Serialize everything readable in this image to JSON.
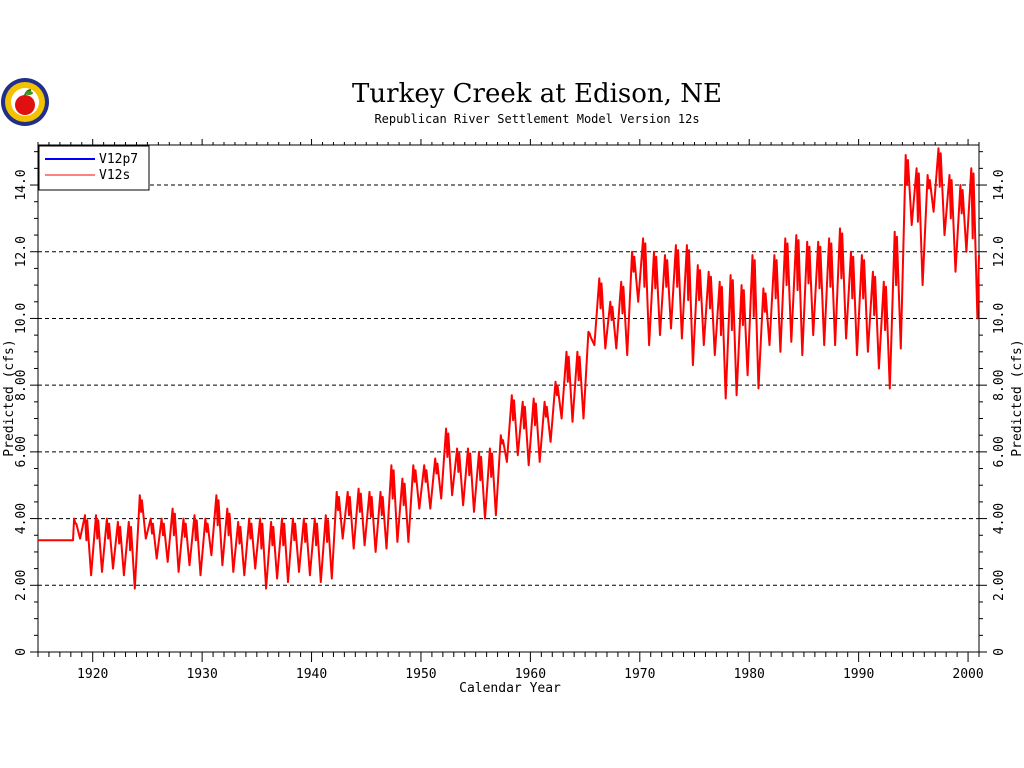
{
  "logo": {
    "icon": "apple-seal-logo"
  },
  "chart_data": {
    "type": "line",
    "title": "Turkey Creek at Edison, NE",
    "subtitle": "Republican River Settlement Model Version 12s",
    "xlabel": "Calendar Year",
    "ylabel": "Predicted (cfs)",
    "ylabel_right": "Predicted (cfs)",
    "xlim": [
      1915,
      2001
    ],
    "ylim": [
      0,
      15.2
    ],
    "x_ticks": [
      1920,
      1930,
      1940,
      1950,
      1960,
      1970,
      1980,
      1990,
      2000
    ],
    "x_tick_labels": [
      "1920",
      "1930",
      "1940",
      "1950",
      "1960",
      "1970",
      "1980",
      "1990",
      "2000"
    ],
    "y_ticks": [
      0,
      2,
      4,
      6,
      8,
      10,
      12,
      14
    ],
    "y_tick_labels": [
      "0",
      "2.00",
      "4.00",
      "6.00",
      "8.00",
      "10.0",
      "12.0",
      "14.0"
    ],
    "grid": "horizontal dashed",
    "legend_position": "top-left",
    "series": [
      {
        "name": "V12p7",
        "color": "#0000ff",
        "values": []
      },
      {
        "name": "V12s",
        "color": "#ff0000",
        "initial_value": 3.35,
        "initial_span": [
          1915,
          1918.2
        ],
        "annual_peak_trough": [
          [
            1918,
            4.0,
            3.4
          ],
          [
            1919,
            4.1,
            2.3
          ],
          [
            1920,
            4.1,
            2.4
          ],
          [
            1921,
            4.0,
            2.5
          ],
          [
            1922,
            3.9,
            2.3
          ],
          [
            1923,
            3.9,
            1.9
          ],
          [
            1924,
            4.7,
            3.4
          ],
          [
            1925,
            4.0,
            2.8
          ],
          [
            1926,
            4.0,
            2.7
          ],
          [
            1927,
            4.3,
            2.4
          ],
          [
            1928,
            4.0,
            2.6
          ],
          [
            1929,
            4.1,
            2.3
          ],
          [
            1930,
            4.0,
            2.9
          ],
          [
            1931,
            4.7,
            2.6
          ],
          [
            1932,
            4.3,
            2.4
          ],
          [
            1933,
            3.9,
            2.3
          ],
          [
            1934,
            4.0,
            2.5
          ],
          [
            1935,
            4.0,
            1.9
          ],
          [
            1936,
            3.9,
            2.2
          ],
          [
            1937,
            4.0,
            2.1
          ],
          [
            1938,
            4.0,
            2.4
          ],
          [
            1939,
            4.0,
            2.3
          ],
          [
            1940,
            4.0,
            2.1
          ],
          [
            1941,
            4.1,
            2.2
          ],
          [
            1942,
            4.8,
            3.4
          ],
          [
            1943,
            4.8,
            3.1
          ],
          [
            1944,
            4.9,
            3.2
          ],
          [
            1945,
            4.8,
            3.0
          ],
          [
            1946,
            4.8,
            3.1
          ],
          [
            1947,
            5.6,
            3.3
          ],
          [
            1948,
            5.2,
            3.3
          ],
          [
            1949,
            5.6,
            4.3
          ],
          [
            1950,
            5.6,
            4.3
          ],
          [
            1951,
            5.8,
            4.6
          ],
          [
            1952,
            6.7,
            4.7
          ],
          [
            1953,
            6.1,
            4.4
          ],
          [
            1954,
            6.1,
            4.2
          ],
          [
            1955,
            6.0,
            4.0
          ],
          [
            1956,
            6.1,
            4.1
          ],
          [
            1957,
            6.5,
            5.7
          ],
          [
            1958,
            7.7,
            5.9
          ],
          [
            1959,
            7.5,
            5.6
          ],
          [
            1960,
            7.6,
            5.7
          ],
          [
            1961,
            7.5,
            6.3
          ],
          [
            1962,
            8.1,
            7.0
          ],
          [
            1963,
            9.0,
            6.9
          ],
          [
            1964,
            9.0,
            7.0
          ],
          [
            1965,
            9.6,
            9.2
          ],
          [
            1966,
            11.2,
            9.1
          ],
          [
            1967,
            10.5,
            9.1
          ],
          [
            1968,
            11.1,
            8.9
          ],
          [
            1969,
            12.0,
            10.5
          ],
          [
            1970,
            12.4,
            9.2
          ],
          [
            1971,
            12.0,
            9.5
          ],
          [
            1972,
            11.9,
            9.7
          ],
          [
            1973,
            12.2,
            9.4
          ],
          [
            1974,
            12.2,
            8.6
          ],
          [
            1975,
            11.6,
            9.2
          ],
          [
            1976,
            11.4,
            8.9
          ],
          [
            1977,
            11.1,
            7.6
          ],
          [
            1978,
            11.3,
            7.7
          ],
          [
            1979,
            11.0,
            8.3
          ],
          [
            1980,
            11.9,
            7.9
          ],
          [
            1981,
            10.9,
            9.2
          ],
          [
            1982,
            11.9,
            9.0
          ],
          [
            1983,
            12.4,
            9.3
          ],
          [
            1984,
            12.5,
            8.9
          ],
          [
            1985,
            12.3,
            9.5
          ],
          [
            1986,
            12.3,
            9.2
          ],
          [
            1987,
            12.4,
            9.2
          ],
          [
            1988,
            12.7,
            9.4
          ],
          [
            1989,
            12.0,
            8.9
          ],
          [
            1990,
            11.9,
            9.0
          ],
          [
            1991,
            11.4,
            8.5
          ],
          [
            1992,
            11.1,
            7.9
          ],
          [
            1993,
            12.6,
            9.1
          ],
          [
            1994,
            14.9,
            12.8
          ],
          [
            1995,
            14.5,
            11.0
          ],
          [
            1996,
            14.3,
            13.2
          ],
          [
            1997,
            15.1,
            12.5
          ],
          [
            1998,
            14.3,
            11.4
          ],
          [
            1999,
            14.0,
            12.0
          ],
          [
            2000,
            14.5,
            10.0
          ]
        ]
      }
    ]
  }
}
